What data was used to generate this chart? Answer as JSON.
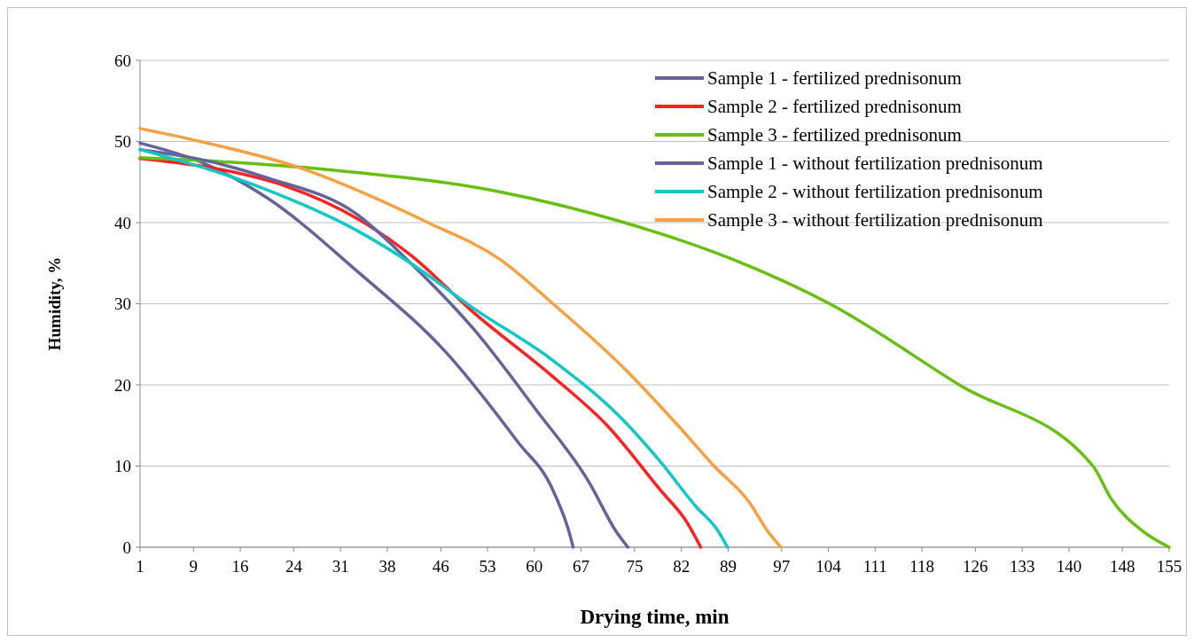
{
  "chart_data": {
    "type": "line",
    "xlabel": "Drying time, min",
    "ylabel": "Humidity, %",
    "xlim": [
      1,
      155
    ],
    "xticks": [
      1,
      9,
      16,
      24,
      31,
      38,
      46,
      53,
      60,
      67,
      75,
      82,
      89,
      97,
      104,
      111,
      118,
      126,
      133,
      140,
      148,
      155
    ],
    "ylim": [
      0,
      60
    ],
    "yticks": [
      0,
      10,
      20,
      30,
      40,
      50,
      60
    ],
    "grid": "y",
    "legend": "top right",
    "marker": "none",
    "line_style": "solid",
    "series": [
      {
        "name": "Sample 1 - fertilized prednisonum",
        "color": "#64649c",
        "x": [
          1,
          10,
          20.1,
          33.5,
          46.8,
          57.5,
          62.8,
          65.5,
          65.8
        ],
        "values": [
          49.8,
          47.5,
          43,
          34,
          24,
          13,
          7,
          1,
          0
        ]
      },
      {
        "name": "Sample 2 - fertilized prednisonum",
        "color": "#ff2020",
        "x": [
          1,
          13.4,
          22.8,
          33.5,
          41.5,
          50.8,
          62.8,
          70.9,
          78.9,
          82.9,
          84.9
        ],
        "values": [
          47.9,
          46.5,
          44.5,
          40.5,
          36,
          29,
          21,
          15,
          7,
          3,
          0
        ]
      },
      {
        "name": "Sample 3 - fertilized prednisonum",
        "color": "#66c010",
        "x": [
          1,
          13.4,
          29.4,
          54.8,
          73.5,
          89.6,
          104.2,
          123.6,
          143.6,
          146.3,
          151,
          155
        ],
        "values": [
          48,
          47.5,
          46.5,
          43.8,
          40,
          35.5,
          30,
          20,
          10,
          6,
          2,
          0
        ]
      },
      {
        "name": "Sample 1 - without fertilization prednisonum",
        "color": "#64649c",
        "x": [
          1,
          10,
          20.1,
          33.5,
          41.5,
          50.8,
          60.2,
          68.2,
          72.2,
          74
        ],
        "values": [
          49,
          47.8,
          45.5,
          41,
          35,
          27,
          17,
          8,
          2,
          0
        ]
      },
      {
        "name": "Sample 2 - without fertilization prednisonum",
        "color": "#10c8c8",
        "x": [
          1,
          13.4,
          20.1,
          33.5,
          41.5,
          50.8,
          62.8,
          73.5,
          78.9,
          84.2,
          87.5,
          88.9
        ],
        "values": [
          49,
          46,
          44,
          39,
          35,
          29.5,
          23,
          15.5,
          10.5,
          5,
          2,
          0
        ]
      },
      {
        "name": "Sample 3 - without fertilization prednisonum",
        "color": "#f8a040",
        "x": [
          1,
          10,
          24,
          44.1,
          54.8,
          62.8,
          73.5,
          81.5,
          86.9,
          92.2,
          94.9,
          96.9
        ],
        "values": [
          51.6,
          50,
          47,
          40,
          35.5,
          30,
          22,
          15,
          10,
          5.5,
          2,
          0
        ]
      }
    ]
  }
}
